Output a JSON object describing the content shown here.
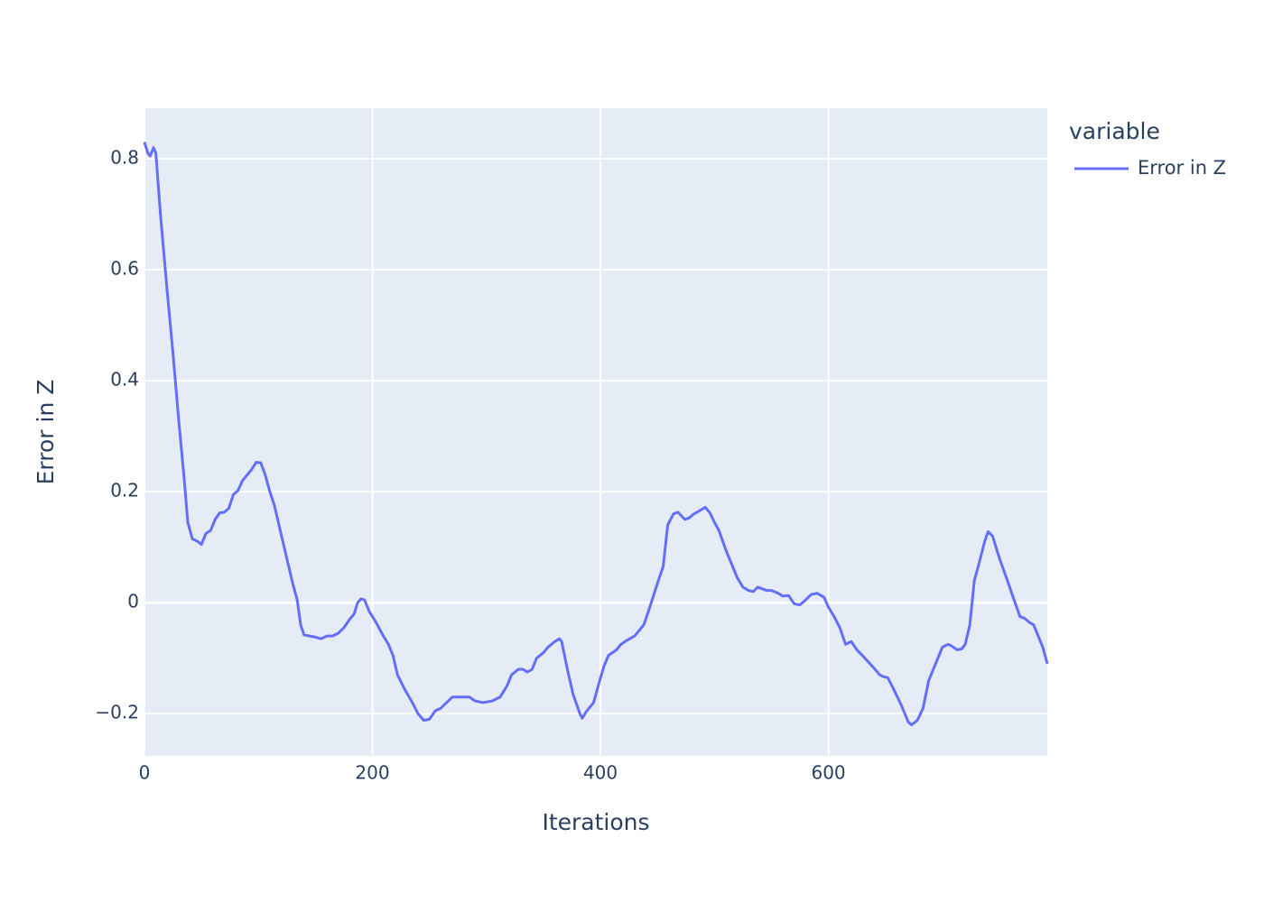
{
  "chart_data": {
    "type": "line",
    "xlabel": "Iterations",
    "ylabel": "Error in Z",
    "legend_title": "variable",
    "legend_position": "right",
    "grid": true,
    "xlim": [
      0,
      792
    ],
    "ylim": [
      -0.276,
      0.891
    ],
    "xticks": [
      0,
      200,
      400,
      600
    ],
    "yticks": [
      {
        "value": -0.2,
        "label": "−0.2"
      },
      0,
      0.2,
      0.4,
      0.6,
      0.8
    ],
    "x": [
      0,
      3,
      5,
      8,
      10,
      14,
      20,
      25,
      30,
      35,
      38,
      42,
      47,
      50,
      54,
      58,
      62,
      66,
      70,
      74,
      78,
      82,
      86,
      90,
      94,
      98,
      102,
      106,
      110,
      114,
      118,
      122,
      126,
      130,
      134,
      137,
      140,
      145,
      150,
      155,
      160,
      165,
      170,
      175,
      180,
      184,
      187,
      190,
      193,
      197,
      203,
      209,
      214,
      218,
      222,
      228,
      235,
      240,
      245,
      250,
      255,
      260,
      265,
      270,
      278,
      285,
      290,
      297,
      305,
      312,
      318,
      322,
      328,
      332,
      336,
      340,
      344,
      350,
      354,
      360,
      364,
      366,
      371,
      376,
      382,
      384,
      388,
      394,
      398,
      403,
      407,
      414,
      418,
      423,
      430,
      434,
      438,
      443,
      450,
      455,
      459,
      464,
      468,
      474,
      478,
      482,
      488,
      492,
      496,
      500,
      504,
      510,
      515,
      520,
      525,
      530,
      534,
      538,
      542,
      546,
      550,
      555,
      560,
      565,
      570,
      575,
      580,
      585,
      590,
      596,
      600,
      605,
      610,
      615,
      620,
      625,
      632,
      640,
      645,
      648,
      652,
      657,
      664,
      670,
      673,
      678,
      683,
      688,
      694,
      700,
      705,
      708,
      713,
      717,
      720,
      724,
      728,
      732,
      737,
      740,
      744,
      750,
      757,
      762,
      768,
      772,
      776,
      780,
      784,
      788,
      792
    ],
    "series": [
      {
        "name": "Error in Z",
        "color": "#636efa",
        "values": [
          0.83,
          0.81,
          0.805,
          0.82,
          0.81,
          0.7,
          0.56,
          0.45,
          0.33,
          0.22,
          0.145,
          0.115,
          0.11,
          0.105,
          0.125,
          0.13,
          0.15,
          0.162,
          0.163,
          0.17,
          0.195,
          0.202,
          0.22,
          0.23,
          0.24,
          0.253,
          0.252,
          0.23,
          0.2,
          0.175,
          0.14,
          0.105,
          0.07,
          0.035,
          0.005,
          -0.04,
          -0.058,
          -0.06,
          -0.062,
          -0.065,
          -0.06,
          -0.06,
          -0.055,
          -0.045,
          -0.03,
          -0.02,
          0,
          0.007,
          0.005,
          -0.015,
          -0.035,
          -0.058,
          -0.075,
          -0.095,
          -0.13,
          -0.155,
          -0.18,
          -0.2,
          -0.212,
          -0.21,
          -0.195,
          -0.19,
          -0.18,
          -0.17,
          -0.17,
          -0.17,
          -0.177,
          -0.18,
          -0.177,
          -0.17,
          -0.15,
          -0.13,
          -0.12,
          -0.12,
          -0.125,
          -0.12,
          -0.1,
          -0.09,
          -0.08,
          -0.07,
          -0.065,
          -0.07,
          -0.12,
          -0.165,
          -0.2,
          -0.208,
          -0.195,
          -0.18,
          -0.15,
          -0.115,
          -0.095,
          -0.085,
          -0.075,
          -0.068,
          -0.06,
          -0.05,
          -0.04,
          -0.01,
          0.035,
          0.065,
          0.14,
          0.16,
          0.163,
          0.15,
          0.153,
          0.16,
          0.167,
          0.172,
          0.162,
          0.145,
          0.13,
          0.095,
          0.07,
          0.045,
          0.028,
          0.022,
          0.02,
          0.028,
          0.025,
          0.022,
          0.022,
          0.018,
          0.012,
          0.013,
          -0.002,
          -0.004,
          0.005,
          0.015,
          0.017,
          0.01,
          -0.008,
          -0.025,
          -0.045,
          -0.075,
          -0.07,
          -0.085,
          -0.1,
          -0.118,
          -0.13,
          -0.133,
          -0.135,
          -0.155,
          -0.185,
          -0.215,
          -0.22,
          -0.212,
          -0.19,
          -0.14,
          -0.11,
          -0.08,
          -0.075,
          -0.078,
          -0.085,
          -0.083,
          -0.075,
          -0.04,
          0.04,
          0.07,
          0.11,
          0.128,
          0.12,
          0.08,
          0.04,
          0.01,
          -0.025,
          -0.028,
          -0.035,
          -0.04,
          -0.06,
          -0.08,
          -0.11
        ]
      }
    ]
  }
}
